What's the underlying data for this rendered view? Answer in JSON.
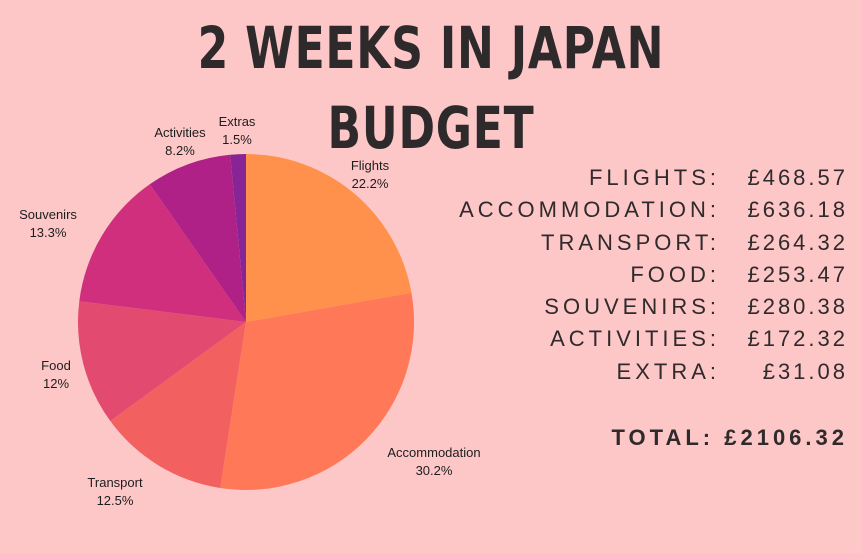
{
  "title": "2 WEEKS IN JAPAN BUDGET",
  "chart_data": {
    "type": "pie",
    "slices": [
      {
        "label": "Flights",
        "value": 22.2,
        "value_label": "22.2%",
        "color": "#ff914d"
      },
      {
        "label": "Accommodation",
        "value": 30.2,
        "value_label": "30.2%",
        "color": "#ff7857"
      },
      {
        "label": "Transport",
        "value": 12.5,
        "value_label": "12.5%",
        "color": "#f2615f"
      },
      {
        "label": "Food",
        "value": 12,
        "value_label": "12%",
        "color": "#e34a6f"
      },
      {
        "label": "Souvenirs",
        "value": 13.3,
        "value_label": "13.3%",
        "color": "#cf2f7c"
      },
      {
        "label": "Activities",
        "value": 8.2,
        "value_label": "8.2%",
        "color": "#b02188"
      },
      {
        "label": "Extras",
        "value": 1.5,
        "value_label": "1.5%",
        "color": "#882596"
      }
    ]
  },
  "budget": {
    "items": [
      {
        "label": "FLIGHTS:",
        "amount": "£468.57"
      },
      {
        "label": "ACCOMMODATION:",
        "amount": "£636.18"
      },
      {
        "label": "TRANSPORT:",
        "amount": "£264.32"
      },
      {
        "label": "FOOD:",
        "amount": "£253.47"
      },
      {
        "label": "SOUVENIRS:",
        "amount": "£280.38"
      },
      {
        "label": "ACTIVITIES:",
        "amount": "£172.32"
      },
      {
        "label": "EXTRA:",
        "amount": "£31.08"
      }
    ],
    "total_label": "TOTAL:",
    "total_amount": "£2106.32"
  }
}
